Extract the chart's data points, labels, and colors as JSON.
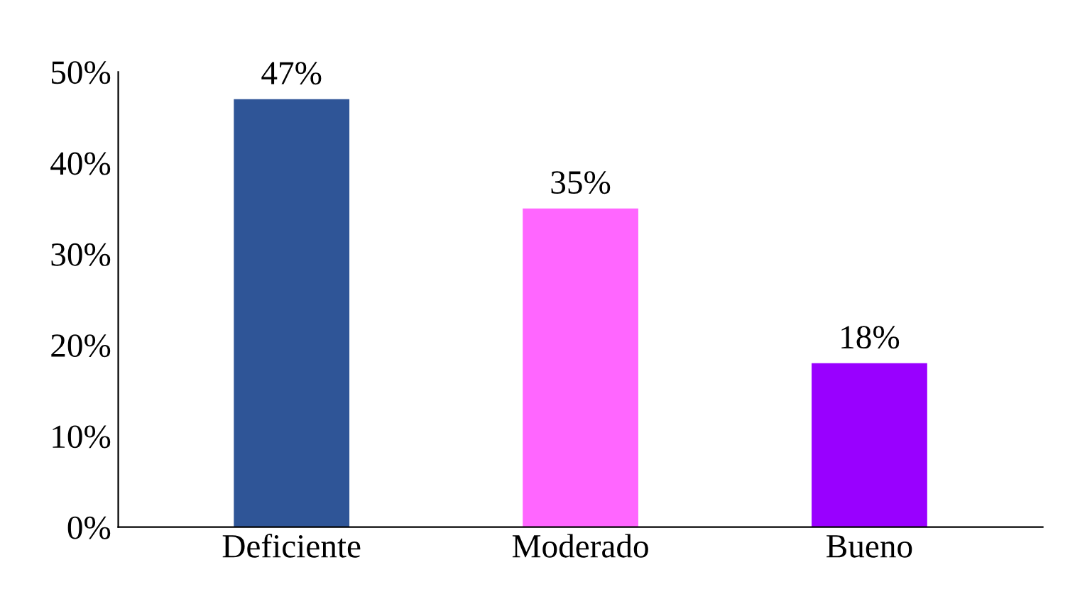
{
  "chart_data": {
    "type": "bar",
    "categories": [
      "Deficiente",
      "Moderado",
      "Bueno"
    ],
    "values": [
      47,
      35,
      18
    ],
    "colors": [
      "#2f5597",
      "#ff66ff",
      "#9900ff"
    ],
    "value_labels": [
      "47%",
      "35%",
      "18%"
    ],
    "ylim": [
      0,
      50
    ],
    "yticks": [
      {
        "value": 0,
        "label": "0%"
      },
      {
        "value": 10,
        "label": "10%"
      },
      {
        "value": 20,
        "label": "20%"
      },
      {
        "value": 30,
        "label": "30%"
      },
      {
        "value": 40,
        "label": "40%"
      },
      {
        "value": 50,
        "label": "50%"
      }
    ],
    "grid": false
  }
}
